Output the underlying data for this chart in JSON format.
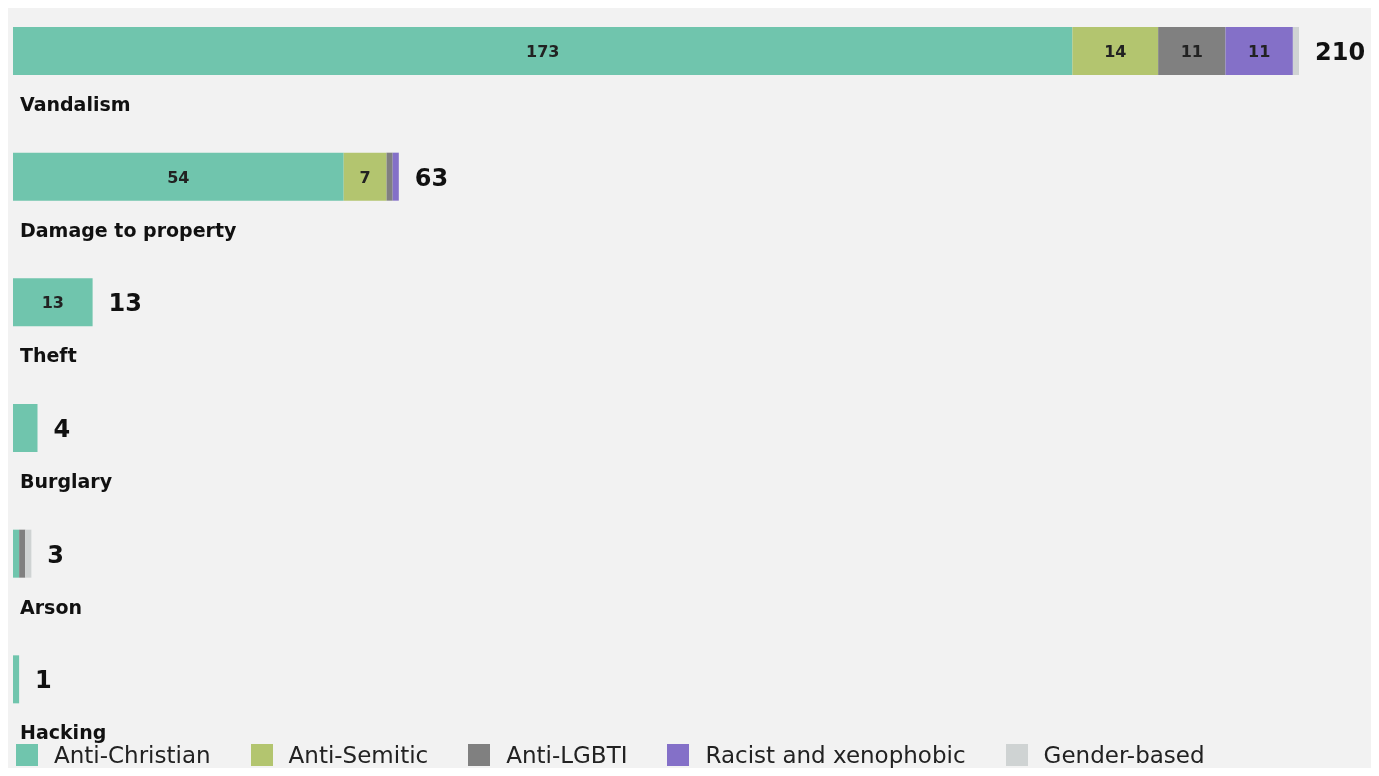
{
  "chart_data": {
    "type": "bar",
    "orientation": "horizontal",
    "stacked": true,
    "categories": [
      "Vandalism",
      "Damage to property",
      "Theft",
      "Burglary",
      "Arson",
      "Hacking"
    ],
    "series": [
      {
        "name": "Anti-Christian",
        "color": "#70c5ad",
        "values": [
          173,
          54,
          13,
          4,
          1,
          1
        ],
        "value_labels": [
          "173",
          "54",
          "13",
          null,
          null,
          null
        ]
      },
      {
        "name": "Anti-Semitic",
        "color": "#b3c56f",
        "values": [
          14,
          7,
          0,
          0,
          0,
          0
        ],
        "value_labels": [
          "14",
          "7",
          null,
          null,
          null,
          null
        ]
      },
      {
        "name": "Anti-LGBTI",
        "color": "#808080",
        "values": [
          11,
          1,
          0,
          0,
          1,
          0
        ],
        "value_labels": [
          "11",
          null,
          null,
          null,
          null,
          null
        ]
      },
      {
        "name": "Racist and xenophobic",
        "color": "#8470c8",
        "values": [
          11,
          1,
          0,
          0,
          0,
          0
        ],
        "value_labels": [
          "11",
          null,
          null,
          null,
          null,
          null
        ]
      },
      {
        "name": "Gender-based",
        "color": "#cfd3d3",
        "values": [
          1,
          0,
          0,
          0,
          1,
          0
        ],
        "value_labels": [
          null,
          null,
          null,
          null,
          null,
          null
        ]
      }
    ],
    "totals": [
      "210",
      "63",
      "13",
      "4",
      "3",
      "1"
    ],
    "legend": "bottom",
    "grid": false
  }
}
